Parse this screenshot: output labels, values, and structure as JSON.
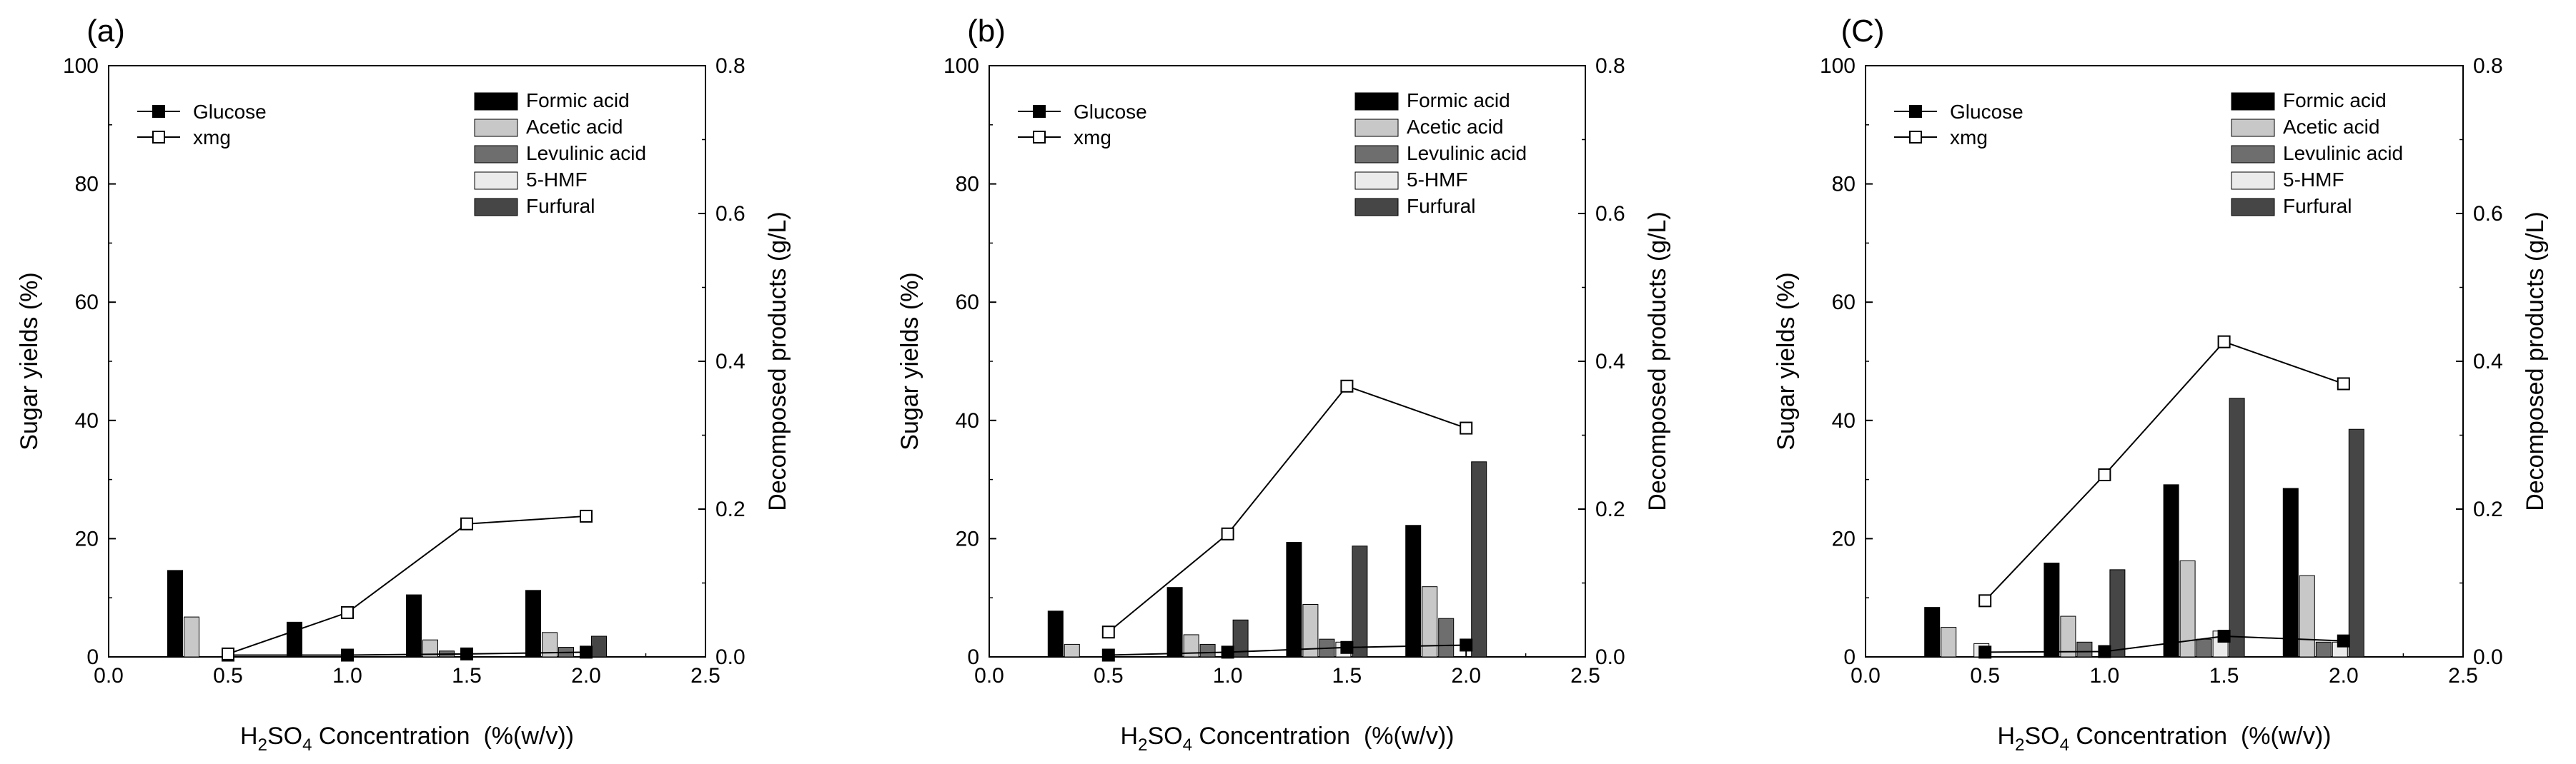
{
  "figure": {
    "xlabel": {
      "prefix": "H",
      "sub1": "2",
      "mid": "SO",
      "sub2": "4",
      "suffix": " Concentration  (%(w/v))"
    },
    "ylabel_left": "Sugar yields (%)",
    "ylabel_right": "Decomposed products (g/L)",
    "colors": {
      "formic": "#000000",
      "acetic": "#c8c8c8",
      "levulinic": "#6e6e6e",
      "hmf": "#ebebeb",
      "furfural": "#464646",
      "line": "#000000"
    }
  },
  "chart_data": [
    {
      "type": "bar+line",
      "panel_label": "(a)",
      "x": [
        0.5,
        1.0,
        1.5,
        2.0
      ],
      "xlim": [
        0.0,
        2.5
      ],
      "xticks": [
        "0.0",
        "0.5",
        "1.0",
        "1.5",
        "2.0",
        "2.5"
      ],
      "ylim_left": [
        0,
        100
      ],
      "yticks_left": [
        "0",
        "20",
        "40",
        "60",
        "80",
        "100"
      ],
      "ylim_right": [
        0.0,
        0.8
      ],
      "yticks_right": [
        "0.0",
        "0.2",
        "0.4",
        "0.6",
        "0.8"
      ],
      "line_series": [
        {
          "name": "Glucose",
          "marker": "filled-square",
          "values": [
            0.3,
            0.3,
            0.5,
            0.8
          ]
        },
        {
          "name": "xmg",
          "marker": "open-square",
          "values": [
            0.5,
            7.5,
            22.5,
            23.8
          ]
        }
      ],
      "bar_series": [
        {
          "name": "Formic acid",
          "values": [
            0.117,
            0.047,
            0.084,
            0.09
          ]
        },
        {
          "name": "Acetic acid",
          "values": [
            0.054,
            0.0,
            0.023,
            0.033
          ]
        },
        {
          "name": "Levulinic acid",
          "values": [
            0.0,
            0.0,
            0.008,
            0.013
          ]
        },
        {
          "name": "5-HMF",
          "values": [
            0.0,
            0.0,
            0.0,
            0.0
          ]
        },
        {
          "name": "Furfural",
          "values": [
            0.0,
            0.0,
            0.0,
            0.028
          ]
        }
      ]
    },
    {
      "type": "bar+line",
      "panel_label": "(b)",
      "x": [
        0.5,
        1.0,
        1.5,
        2.0
      ],
      "xlim": [
        0.0,
        2.5
      ],
      "xticks": [
        "0.0",
        "0.5",
        "1.0",
        "1.5",
        "2.0",
        "2.5"
      ],
      "ylim_left": [
        0,
        100
      ],
      "yticks_left": [
        "0",
        "20",
        "40",
        "60",
        "80",
        "100"
      ],
      "ylim_right": [
        0.0,
        0.8
      ],
      "yticks_right": [
        "0.0",
        "0.2",
        "0.4",
        "0.6",
        "0.8"
      ],
      "line_series": [
        {
          "name": "Glucose",
          "marker": "filled-square",
          "values": [
            0.3,
            0.8,
            1.6,
            2.0
          ]
        },
        {
          "name": "xmg",
          "marker": "open-square",
          "values": [
            4.2,
            20.8,
            45.8,
            38.7
          ]
        }
      ],
      "bar_series": [
        {
          "name": "Formic acid",
          "values": [
            0.062,
            0.094,
            0.155,
            0.178
          ]
        },
        {
          "name": "Acetic acid",
          "values": [
            0.017,
            0.03,
            0.071,
            0.095
          ]
        },
        {
          "name": "Levulinic acid",
          "values": [
            0.0,
            0.017,
            0.024,
            0.052
          ]
        },
        {
          "name": "5-HMF",
          "values": [
            0.0,
            0.0,
            0.02,
            0.0
          ]
        },
        {
          "name": "Furfural",
          "values": [
            0.0,
            0.05,
            0.15,
            0.264
          ]
        }
      ]
    },
    {
      "type": "bar+line",
      "panel_label": "(C)",
      "x": [
        0.5,
        1.0,
        1.5,
        2.0
      ],
      "xlim": [
        0.0,
        2.5
      ],
      "xticks": [
        "0.0",
        "0.5",
        "1.0",
        "1.5",
        "2.0",
        "2.5"
      ],
      "ylim_left": [
        0,
        100
      ],
      "yticks_left": [
        "0",
        "20",
        "40",
        "60",
        "80",
        "100"
      ],
      "ylim_right": [
        0.0,
        0.8
      ],
      "yticks_right": [
        "0.0",
        "0.2",
        "0.4",
        "0.6",
        "0.8"
      ],
      "line_series": [
        {
          "name": "Glucose",
          "marker": "filled-square",
          "values": [
            0.8,
            0.9,
            3.5,
            2.7
          ]
        },
        {
          "name": "xmg",
          "marker": "open-square",
          "values": [
            9.5,
            30.8,
            53.3,
            46.2
          ]
        }
      ],
      "bar_series": [
        {
          "name": "Formic acid",
          "values": [
            0.067,
            0.127,
            0.233,
            0.228
          ]
        },
        {
          "name": "Acetic acid",
          "values": [
            0.04,
            0.055,
            0.13,
            0.11
          ]
        },
        {
          "name": "Levulinic acid",
          "values": [
            0.0,
            0.02,
            0.024,
            0.02
          ]
        },
        {
          "name": "5-HMF",
          "values": [
            0.018,
            0.0,
            0.035,
            0.02
          ]
        },
        {
          "name": "Furfural",
          "values": [
            0.0,
            0.118,
            0.35,
            0.308
          ]
        }
      ]
    }
  ]
}
